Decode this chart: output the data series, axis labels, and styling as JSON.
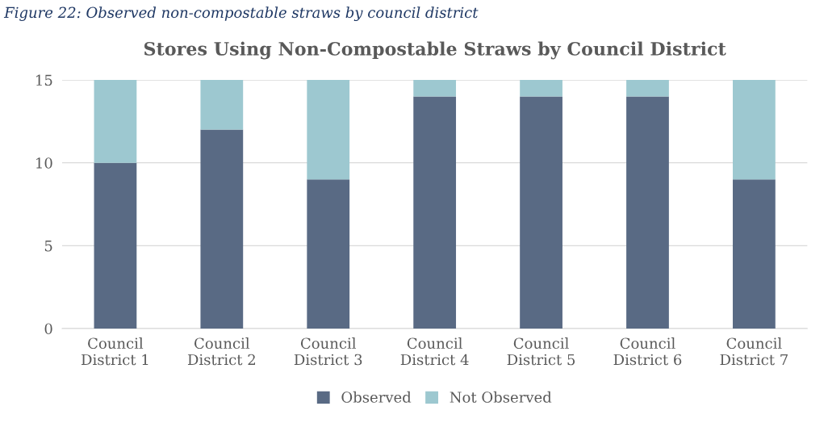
{
  "chart_data": {
    "type": "bar",
    "title": "Stores Using Non-Compostable Straws by Council District",
    "annotations": [
      "Figure 22: Observed non-compostable straws by council district"
    ],
    "categories": [
      "Council\nDistrict 1",
      "Council\nDistrict 2",
      "Council\nDistrict 3",
      "Council\nDistrict 4",
      "Council\nDistrict 5",
      "Council\nDistrict 6",
      "Council\nDistrict 7"
    ],
    "series": [
      {
        "name": "Observed",
        "color": "#596a84",
        "values": [
          10,
          12,
          9,
          14,
          14,
          14,
          9
        ]
      },
      {
        "name": "Not Observed",
        "color": "#9dc8d0",
        "values": [
          5,
          3,
          6,
          1,
          1,
          1,
          6
        ]
      }
    ],
    "stacked": true,
    "ylim": [
      0,
      15
    ],
    "yticks": [
      0,
      5,
      10,
      15
    ],
    "grid": "y",
    "legend": "bottom"
  }
}
